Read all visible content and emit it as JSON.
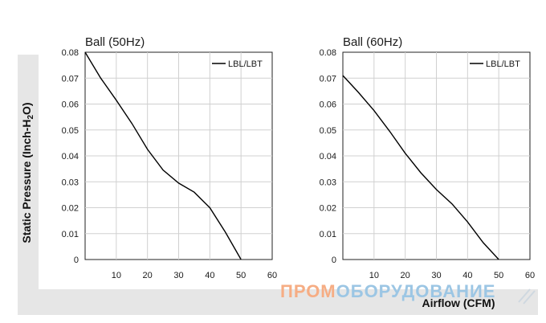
{
  "colors": {
    "frame": "#e6e6e6",
    "line": "#000000",
    "watermark_orange": "#f6ad84",
    "watermark_blue": "#9cc6e4"
  },
  "ylabel_parts": [
    "Static Pressure (Inch-H",
    "2",
    "O)"
  ],
  "xlabel": "Airflow (CFM)",
  "watermark": {
    "part1": "ПРОМ",
    "part2": "ОБОРУДОВАНИЕ"
  },
  "chart_data": [
    {
      "type": "line",
      "title": "Ball (50Hz)",
      "xlim": [
        0,
        60
      ],
      "ylim": [
        0,
        0.08
      ],
      "x_ticks": [
        "10",
        "20",
        "30",
        "40",
        "50",
        "60"
      ],
      "y_ticks": [
        "0",
        "0.01",
        "0.02",
        "0.03",
        "0.04",
        "0.05",
        "0.06",
        "0.07",
        "0.08"
      ],
      "legend": "LBL/LBT",
      "legend_position": "top-right",
      "grid": true,
      "series": [
        {
          "name": "LBL/LBT",
          "x": [
            0,
            5,
            10,
            15,
            20,
            25,
            30,
            35,
            40,
            45,
            50
          ],
          "y": [
            0.08,
            0.07,
            0.0615,
            0.0525,
            0.0425,
            0.0345,
            0.0295,
            0.026,
            0.02,
            0.0105,
            0
          ]
        }
      ]
    },
    {
      "type": "line",
      "title": "Ball (60Hz)",
      "xlim": [
        0,
        60
      ],
      "ylim": [
        0,
        0.08
      ],
      "x_ticks": [
        "10",
        "20",
        "30",
        "40",
        "50",
        "60"
      ],
      "y_ticks": [
        "0",
        "0.01",
        "0.02",
        "0.03",
        "0.04",
        "0.05",
        "0.06",
        "0.07",
        "0.08"
      ],
      "legend": "LBL/LBT",
      "legend_position": "top-right",
      "grid": true,
      "series": [
        {
          "name": "LBL/LBT",
          "x": [
            0,
            5,
            10,
            15,
            20,
            25,
            30,
            35,
            40,
            45,
            50
          ],
          "y": [
            0.071,
            0.0645,
            0.0575,
            0.0495,
            0.041,
            0.0335,
            0.027,
            0.0215,
            0.0145,
            0.0065,
            0
          ]
        }
      ]
    }
  ]
}
